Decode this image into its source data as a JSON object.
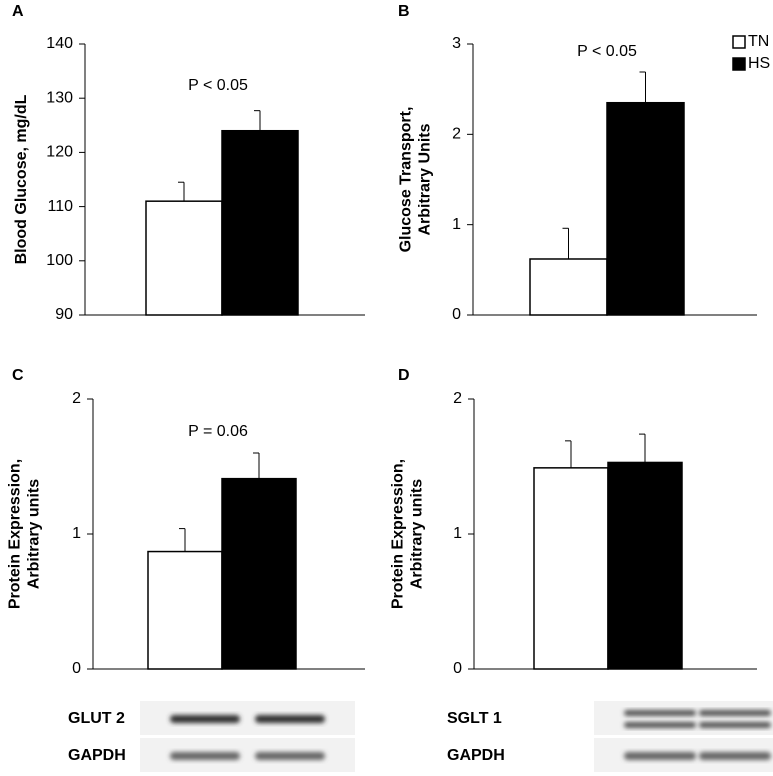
{
  "chart_data": [
    {
      "type": "bar",
      "panel_label": "A",
      "ylabel": [
        "Blood Glucose, mg/dL"
      ],
      "annotation": "P < 0.05",
      "series": [
        {
          "color": "#ffffff",
          "values": [
            111
          ],
          "errors": [
            3.5
          ]
        },
        {
          "color": "#000000",
          "values": [
            124
          ],
          "errors": [
            3.7
          ]
        }
      ],
      "ylim": [
        90,
        140
      ],
      "yticks": [
        90,
        100,
        110,
        120,
        130,
        140
      ]
    },
    {
      "type": "bar",
      "panel_label": "B",
      "ylabel": [
        "Glucose Transport,",
        "Arbitrary Units"
      ],
      "annotation": "P < 0.05",
      "series": [
        {
          "name": "TN",
          "color": "#ffffff",
          "values": [
            0.62
          ],
          "errors": [
            0.34
          ]
        },
        {
          "name": "HS",
          "color": "#000000",
          "values": [
            2.35
          ],
          "errors": [
            0.34
          ]
        }
      ],
      "legend": "upper right",
      "ylim": [
        0,
        3
      ],
      "yticks": [
        0,
        1,
        2,
        3
      ]
    },
    {
      "type": "bar",
      "panel_label": "C",
      "ylabel": [
        "Protein Expression,",
        "Arbitrary units"
      ],
      "annotation": "P = 0.06",
      "series": [
        {
          "color": "#ffffff",
          "values": [
            0.87
          ],
          "errors": [
            0.17
          ]
        },
        {
          "color": "#000000",
          "values": [
            1.41
          ],
          "errors": [
            0.19
          ]
        }
      ],
      "ylim": [
        0,
        2
      ],
      "yticks": [
        0,
        1,
        2
      ],
      "blot_labels": [
        "GLUT 2",
        "GAPDH"
      ]
    },
    {
      "type": "bar",
      "panel_label": "D",
      "ylabel": [
        "Protein Expression,",
        "Arbitrary units"
      ],
      "series": [
        {
          "color": "#ffffff",
          "values": [
            1.49
          ],
          "errors": [
            0.2
          ]
        },
        {
          "color": "#000000",
          "values": [
            1.53
          ],
          "errors": [
            0.21
          ]
        }
      ],
      "ylim": [
        0,
        2
      ],
      "yticks": [
        0,
        1,
        2
      ],
      "blot_labels": [
        "SGLT 1",
        "GAPDH"
      ]
    }
  ]
}
